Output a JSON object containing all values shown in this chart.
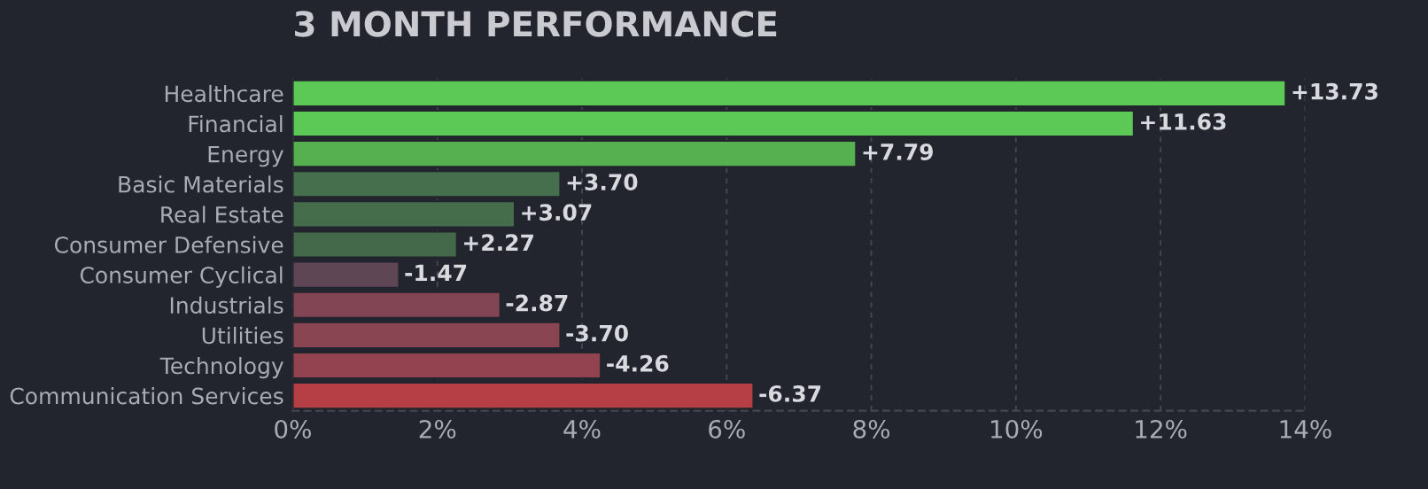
{
  "chart_data": {
    "type": "bar",
    "orientation": "horizontal",
    "title": "3 MONTH PERFORMANCE",
    "categories": [
      "Healthcare",
      "Financial",
      "Energy",
      "Basic Materials",
      "Real Estate",
      "Consumer Defensive",
      "Consumer Cyclical",
      "Industrials",
      "Utilities",
      "Technology",
      "Communication Services"
    ],
    "values": [
      13.73,
      11.63,
      7.79,
      3.7,
      3.07,
      2.27,
      -1.47,
      -2.87,
      -3.7,
      -4.26,
      -6.37
    ],
    "base": [
      0,
      0,
      0,
      0,
      0,
      0,
      1.47,
      2.87,
      3.7,
      4.26,
      6.37
    ],
    "value_labels": [
      "+13.73",
      "+11.63",
      "+7.79",
      "+3.70",
      "+3.07",
      "+2.27",
      "-1.47",
      "-2.87",
      "-3.70",
      "-4.26",
      "-6.37"
    ],
    "colors": [
      "#5cc957",
      "#5cc957",
      "#56b04f",
      "#46704d",
      "#456d4b",
      "#44684a",
      "#5e4654",
      "#814553",
      "#8a4552",
      "#934350",
      "#b63f45"
    ],
    "xlim": [
      0,
      14
    ],
    "xticks": [
      {
        "value": 0,
        "label": "0%"
      },
      {
        "value": 2,
        "label": "2%"
      },
      {
        "value": 4,
        "label": "4%"
      },
      {
        "value": 6,
        "label": "6%"
      },
      {
        "value": 8,
        "label": "8%"
      },
      {
        "value": 10,
        "label": "10%"
      },
      {
        "value": 12,
        "label": "12%"
      },
      {
        "value": 14,
        "label": "14%"
      }
    ],
    "grid": "x"
  }
}
